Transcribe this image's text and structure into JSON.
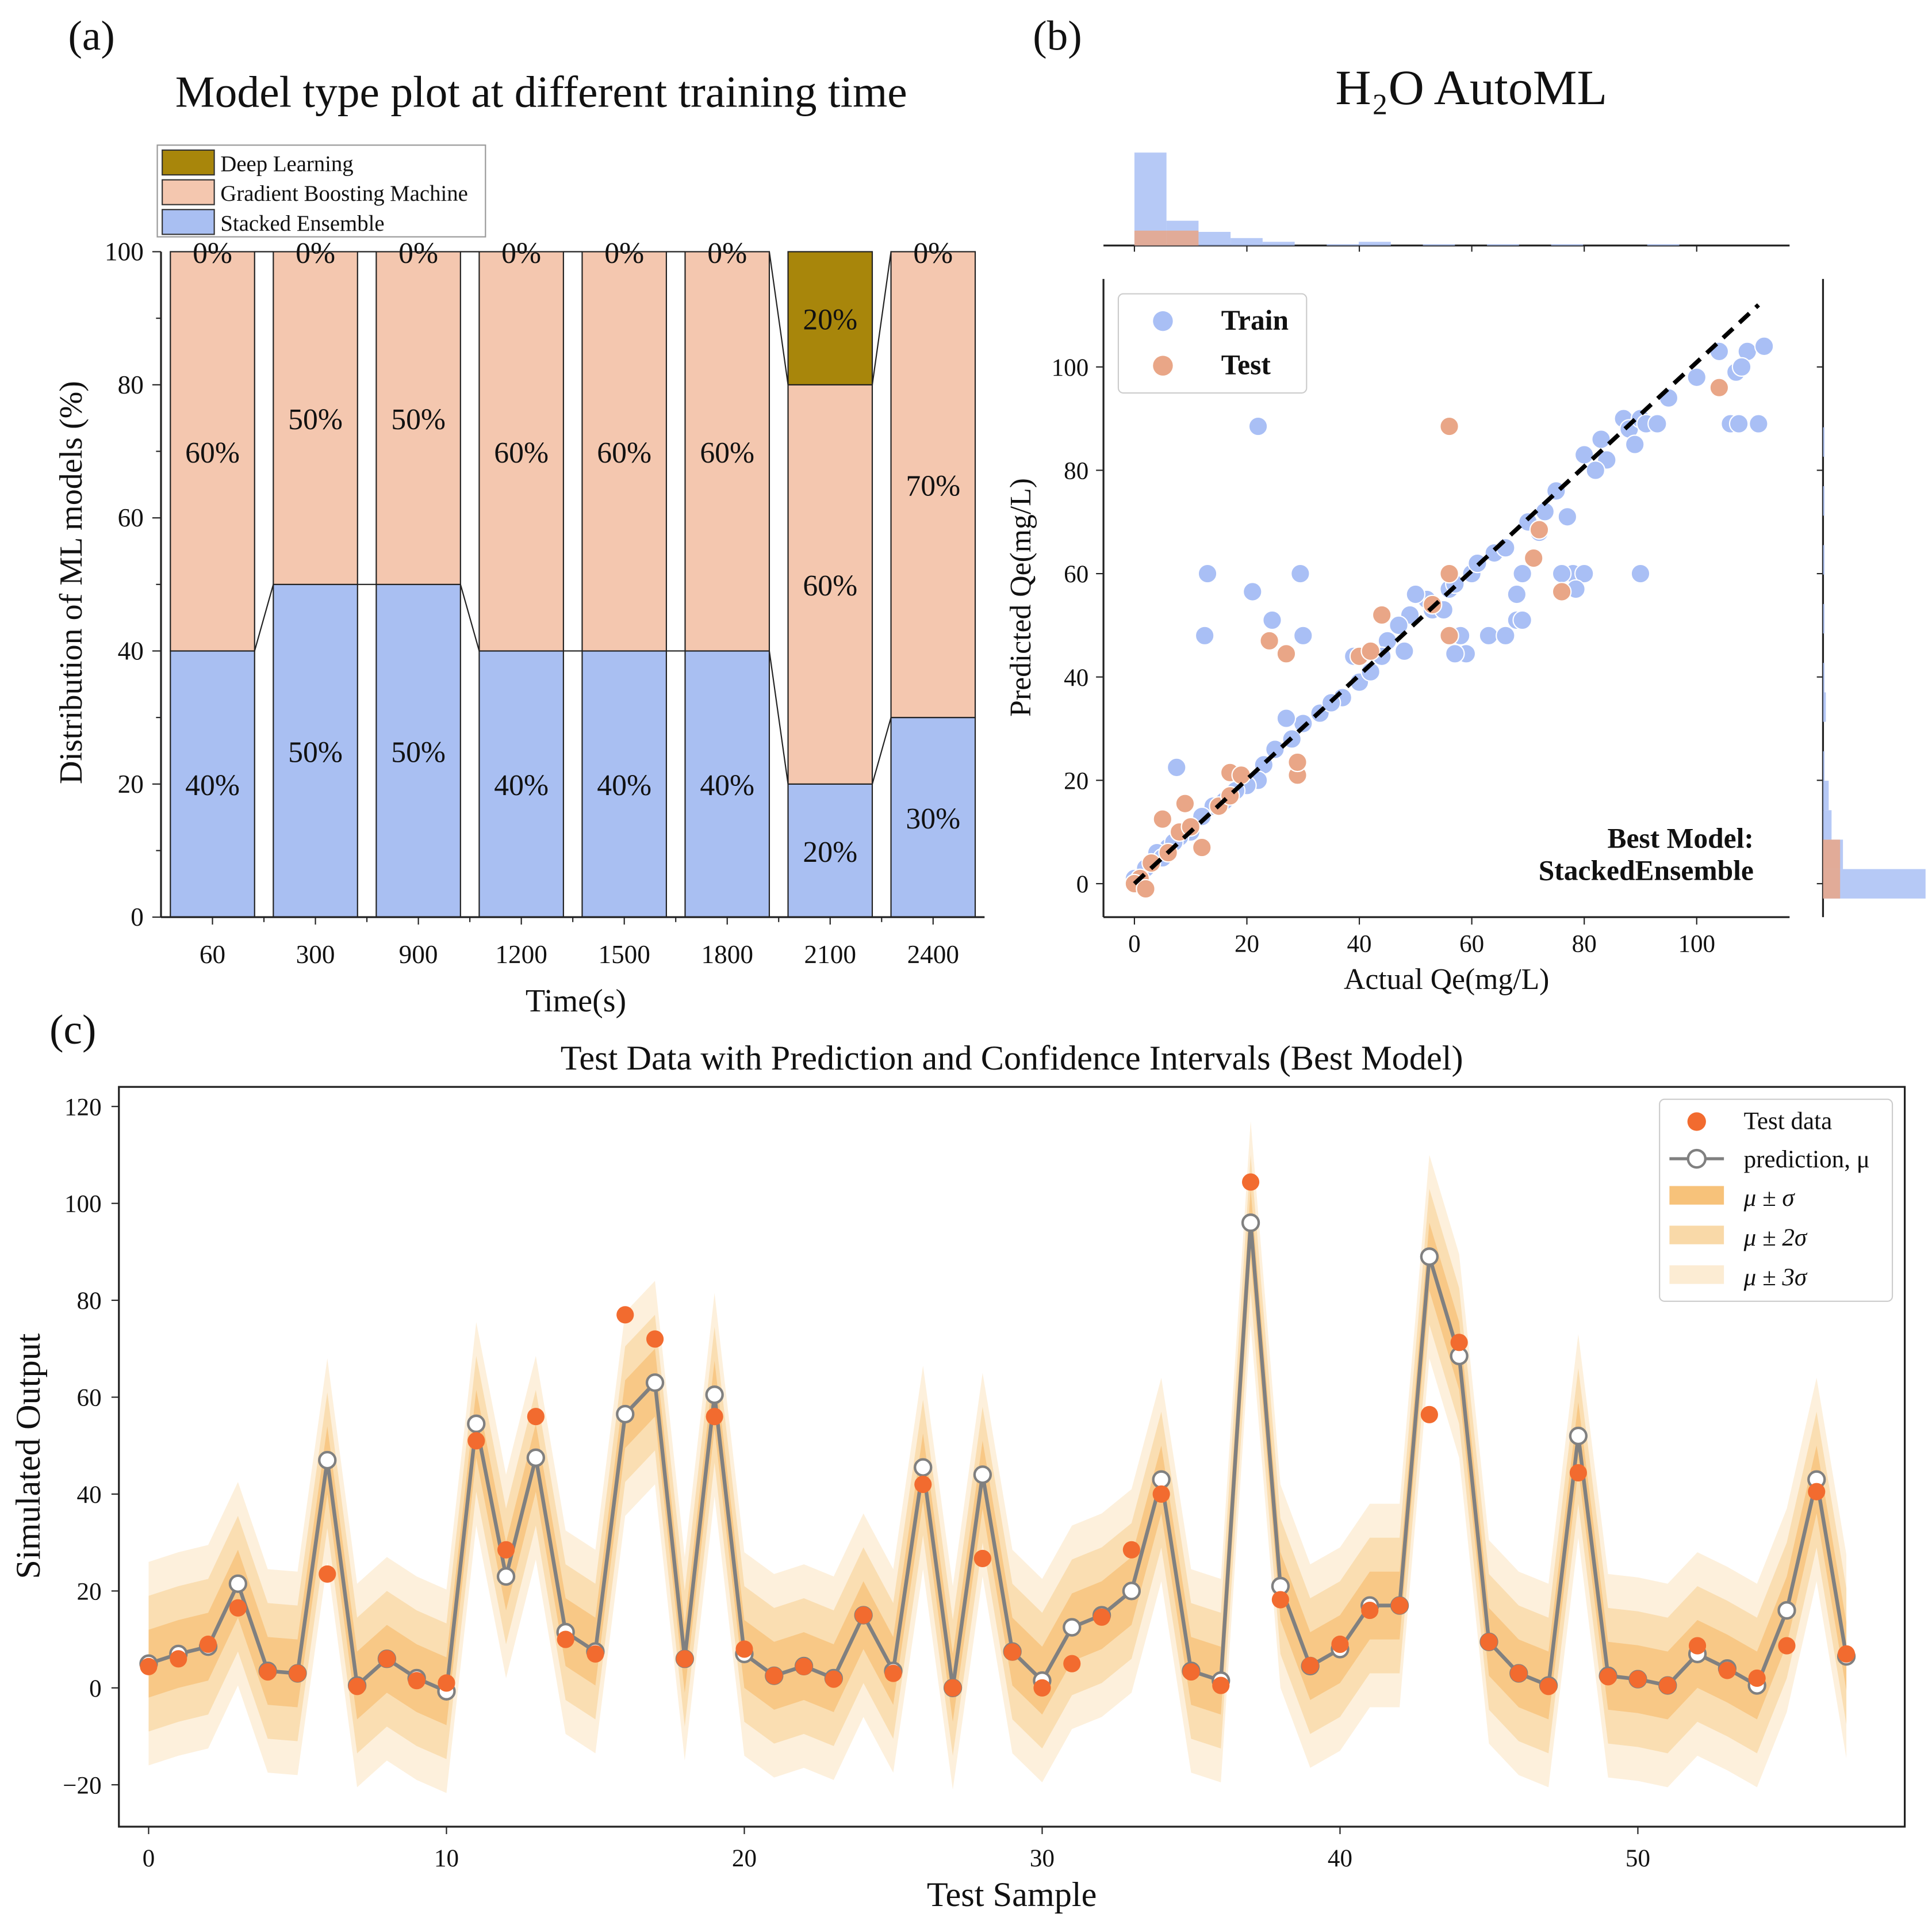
{
  "colors": {
    "deep_learning": "#a8860b",
    "gbm": "#f4c7af",
    "stacked": "#a9bff2",
    "train": "#a9bff5",
    "test": "#e9a687",
    "test_point": "#f26b2f",
    "band1": "#f7c27a",
    "band2": "#f9d9a8",
    "band3": "#fcecd3",
    "prediction_line": "#808080"
  },
  "chart_data": [
    {
      "panel_label": "(a)",
      "type": "bar",
      "stacked": true,
      "title": "Model type plot at different training time",
      "xlabel": "Time(s)",
      "ylabel": "Distribution of ML models (%)",
      "ylim": [
        0,
        100
      ],
      "yticks": [
        "0",
        "20",
        "40",
        "60",
        "80",
        "100"
      ],
      "categories": [
        "60",
        "300",
        "900",
        "1200",
        "1500",
        "1800",
        "2100",
        "2400"
      ],
      "legend": [
        "Deep Learning",
        "Gradient Boosting Machine",
        "Stacked Ensemble"
      ],
      "legend_position": "top-left",
      "series": [
        {
          "name": "Stacked Ensemble",
          "values": [
            40,
            50,
            50,
            40,
            40,
            40,
            20,
            30
          ],
          "labels": [
            "40%",
            "50%",
            "50%",
            "40%",
            "40%",
            "40%",
            "20%",
            "30%"
          ]
        },
        {
          "name": "Gradient Boosting Machine",
          "values": [
            60,
            50,
            50,
            60,
            60,
            60,
            60,
            70
          ],
          "labels": [
            "60%",
            "50%",
            "50%",
            "60%",
            "60%",
            "60%",
            "60%",
            "70%"
          ]
        },
        {
          "name": "Deep Learning",
          "values": [
            0,
            0,
            0,
            0,
            0,
            0,
            20,
            0
          ],
          "labels": [
            "0%",
            "0%",
            "0%",
            "0%",
            "0%",
            "0%",
            "20%",
            "0%"
          ]
        }
      ]
    },
    {
      "panel_label": "(b)",
      "type": "scatter",
      "title": "H₂O AutoML",
      "xlabel": "Actual Qe(mg/L)",
      "ylabel": "Predicted Qe(mg/L)",
      "xticks": [
        "0",
        "20",
        "40",
        "60",
        "80",
        "100"
      ],
      "yticks": [
        "0",
        "20",
        "40",
        "60",
        "80",
        "100"
      ],
      "xlim": [
        -5,
        117
      ],
      "ylim": [
        -6,
        117
      ],
      "legend": [
        "Train",
        "Test"
      ],
      "legend_position": "top-left",
      "annotation": [
        "Best Model:",
        "StackedEnsemble"
      ],
      "reference_line": "y = x (dashed)",
      "train": [
        [
          22,
          88.5
        ],
        [
          13,
          60
        ],
        [
          21,
          56.5
        ],
        [
          29.5,
          60
        ],
        [
          12.5,
          48
        ],
        [
          24.5,
          51
        ],
        [
          30,
          48
        ],
        [
          7.5,
          22.5
        ],
        [
          106,
          89
        ],
        [
          107.5,
          89
        ],
        [
          111,
          89
        ],
        [
          78,
          60
        ],
        [
          80,
          60
        ],
        [
          78.5,
          57
        ],
        [
          90,
          60
        ],
        [
          68,
          51
        ],
        [
          69,
          51
        ],
        [
          76,
          60
        ],
        [
          68,
          56
        ],
        [
          69,
          60
        ],
        [
          58,
          48
        ],
        [
          59,
          44.5
        ],
        [
          57,
          44.5
        ],
        [
          63,
          48
        ],
        [
          66,
          48
        ],
        [
          107,
          99
        ],
        [
          109,
          103
        ],
        [
          112,
          104
        ],
        [
          104,
          103
        ],
        [
          108,
          100
        ],
        [
          95,
          94
        ],
        [
          87,
          90
        ],
        [
          83,
          86
        ],
        [
          80,
          83
        ],
        [
          84,
          82
        ],
        [
          88,
          88
        ],
        [
          89,
          85
        ],
        [
          90,
          90
        ],
        [
          91,
          89
        ],
        [
          93,
          89
        ],
        [
          75,
          76
        ],
        [
          73,
          72
        ],
        [
          77,
          71
        ],
        [
          70,
          70
        ],
        [
          64,
          64
        ],
        [
          60,
          60
        ],
        [
          56,
          57
        ],
        [
          57,
          58
        ],
        [
          52,
          55
        ],
        [
          50,
          56
        ],
        [
          49,
          52
        ],
        [
          47,
          50
        ],
        [
          45,
          47
        ],
        [
          44,
          44
        ],
        [
          40,
          39
        ],
        [
          42,
          41
        ],
        [
          37,
          36
        ],
        [
          33,
          33
        ],
        [
          30,
          31
        ],
        [
          28,
          28
        ],
        [
          27,
          32
        ],
        [
          25,
          26
        ],
        [
          23,
          23
        ],
        [
          22,
          20
        ],
        [
          20,
          19
        ],
        [
          18,
          18
        ],
        [
          16,
          16
        ],
        [
          14,
          15
        ],
        [
          12,
          13
        ],
        [
          10,
          10
        ],
        [
          8,
          9
        ],
        [
          6,
          7
        ],
        [
          4,
          6
        ],
        [
          3,
          4
        ],
        [
          2,
          3
        ],
        [
          1,
          1
        ],
        [
          0,
          1
        ],
        [
          5,
          5
        ],
        [
          7,
          8
        ],
        [
          35,
          35
        ],
        [
          39,
          44
        ],
        [
          48,
          45
        ],
        [
          53,
          53
        ],
        [
          55,
          53
        ],
        [
          61,
          62
        ],
        [
          66,
          65
        ],
        [
          72,
          68
        ],
        [
          82,
          80
        ],
        [
          100,
          98
        ]
      ],
      "test": [
        [
          56,
          88.5
        ],
        [
          104,
          96
        ],
        [
          72,
          68.5
        ],
        [
          71,
          63
        ],
        [
          76,
          56.5
        ],
        [
          56,
          60
        ],
        [
          56,
          48
        ],
        [
          44,
          52
        ],
        [
          53,
          54
        ],
        [
          40,
          44
        ],
        [
          42,
          45
        ],
        [
          24,
          47
        ],
        [
          27,
          44.5
        ],
        [
          29,
          21
        ],
        [
          29,
          23.5
        ],
        [
          17,
          21.5
        ],
        [
          19,
          21
        ],
        [
          9,
          15.5
        ],
        [
          5,
          12.5
        ],
        [
          8,
          10
        ],
        [
          10,
          11
        ],
        [
          6,
          6
        ],
        [
          3,
          4
        ],
        [
          1,
          1
        ],
        [
          0,
          0
        ],
        [
          2,
          -1
        ],
        [
          12,
          7
        ],
        [
          15,
          15
        ],
        [
          17,
          17
        ]
      ],
      "marginal_x_hist": {
        "bin_width": 5.7,
        "train": [
          75,
          20,
          11,
          6,
          3,
          0,
          1,
          3,
          0,
          1,
          0,
          1,
          0,
          1,
          0,
          0,
          1,
          0,
          0,
          0
        ],
        "test": [
          12,
          12,
          0,
          0,
          0,
          0,
          0,
          0,
          0,
          0,
          0,
          0,
          0,
          0,
          0,
          0,
          0,
          0,
          0,
          0
        ]
      },
      "marginal_y_hist": {
        "bin_width": 5.7,
        "train": [
          72,
          14,
          6,
          4,
          1,
          0,
          2,
          1,
          0,
          1,
          0,
          1,
          0,
          1,
          0,
          1,
          0,
          0,
          0,
          0
        ],
        "test": [
          12,
          12,
          0,
          0,
          0,
          0,
          0,
          0,
          0,
          0,
          0,
          0,
          0,
          0,
          0,
          0,
          0,
          0,
          0,
          0
        ]
      }
    },
    {
      "panel_label": "(c)",
      "type": "line",
      "title": "Test Data with Prediction and Confidence Intervals (Best Model)",
      "xlabel": "Test Sample",
      "ylabel": "Simulated Output",
      "xlim": [
        -1,
        59
      ],
      "ylim": [
        -28,
        124
      ],
      "xticks": [
        "0",
        "10",
        "20",
        "30",
        "40",
        "50"
      ],
      "yticks": [
        "−20",
        "0",
        "20",
        "40",
        "60",
        "80",
        "100",
        "120"
      ],
      "legend": [
        "Test data",
        "prediction, μ",
        "μ ± σ",
        "μ ± 2σ",
        "μ ± 3σ"
      ],
      "legend_position": "top-right",
      "sigma": 7,
      "test_data": [
        4.4,
        6,
        9,
        16.5,
        3.3,
        3,
        23.5,
        0.3,
        6,
        1.5,
        1,
        51,
        28.5,
        56,
        10,
        7,
        77,
        72,
        6,
        56,
        8,
        2.5,
        4.4,
        1.8,
        15,
        3,
        42,
        0,
        26.7,
        7.4,
        0,
        5,
        14.6,
        28.5,
        40,
        3.3,
        0.5,
        104.4,
        18.2,
        4.6,
        9,
        16,
        17,
        56.4,
        71.3,
        9.5,
        3,
        0.3,
        44.4,
        2.3,
        1.8,
        0.5,
        8.7,
        3.6,
        2,
        8.7,
        40.5,
        7
      ],
      "prediction": [
        5,
        7,
        8.5,
        21.5,
        3.5,
        3,
        47,
        0.5,
        6,
        2,
        -0.7,
        54.5,
        23,
        47.5,
        11.5,
        7.5,
        56.5,
        63,
        6,
        60.5,
        7,
        2.5,
        4.5,
        2,
        15,
        3.5,
        45.5,
        0,
        44,
        7.5,
        1.5,
        12.5,
        15,
        20,
        43,
        3.5,
        1.5,
        96,
        21,
        4.5,
        8,
        17,
        17,
        89,
        68.5,
        9.5,
        3,
        0.5,
        52,
        2.5,
        1.8,
        0.5,
        7,
        4,
        0.5,
        16,
        43,
        6.5
      ]
    }
  ]
}
